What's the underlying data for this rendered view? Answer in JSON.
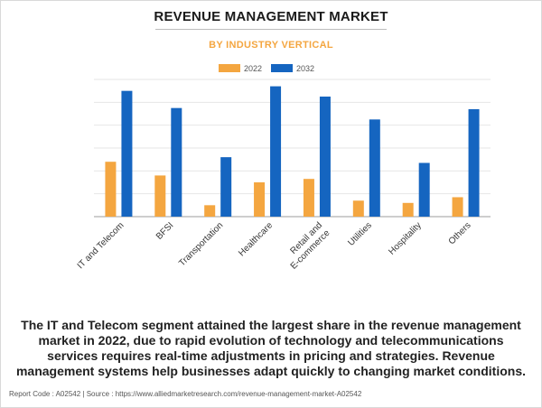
{
  "header": {
    "title": "REVENUE MANAGEMENT MARKET",
    "subtitle": "BY INDUSTRY VERTICAL"
  },
  "colors": {
    "series_2022": "#f4a640",
    "series_2032": "#1565c0",
    "gridline": "#e6e6e6",
    "axis": "#9e9e9e"
  },
  "chart_data": {
    "type": "bar",
    "title": "BY INDUSTRY VERTICAL",
    "categories": [
      [
        "IT and Telecom"
      ],
      [
        "BFSI"
      ],
      [
        "Transportation"
      ],
      [
        "Healthcare"
      ],
      [
        "Retail and",
        "E-commerce"
      ],
      [
        "Utilities"
      ],
      [
        "Hospitality"
      ],
      [
        "Others"
      ]
    ],
    "series": [
      {
        "name": "2022",
        "values": [
          2.4,
          1.8,
          0.5,
          1.5,
          1.65,
          0.7,
          0.6,
          0.85
        ]
      },
      {
        "name": "2032",
        "values": [
          5.5,
          4.75,
          2.6,
          5.7,
          5.25,
          4.25,
          2.35,
          4.7
        ]
      }
    ],
    "ylim": [
      0,
      6
    ],
    "grid": true,
    "legend_position": "top-center"
  },
  "description": "The IT and Telecom segment attained the largest share in the revenue management market in 2022, due to rapid evolution of technology and telecommunications services requires real-time adjustments in pricing and strategies. Revenue management systems help businesses adapt quickly to changing market conditions.",
  "footer": {
    "text": "Report Code : A02542  |  Source : https://www.alliedmarketresearch.com/revenue-management-market-A02542"
  }
}
